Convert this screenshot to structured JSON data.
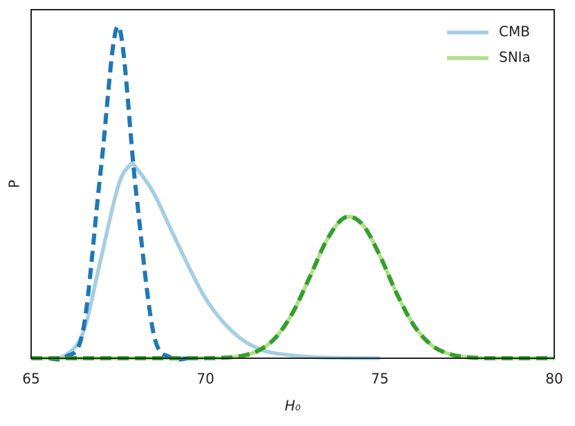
{
  "chart_data": {
    "type": "line",
    "xlabel": "H₀",
    "ylabel": "P",
    "xlim": [
      65,
      80
    ],
    "xticks": [
      65,
      70,
      75,
      80
    ],
    "ylim": [
      0,
      1.05
    ],
    "grid": false,
    "legend": "upper right",
    "series": [
      {
        "name": "CMB",
        "color": "#a6cee3",
        "dash": false,
        "x": [
          65.5,
          66,
          66.5,
          67,
          67.5,
          67.85,
          68,
          68.5,
          69,
          69.5,
          70,
          70.5,
          71,
          71.5,
          72,
          73,
          74,
          75
        ],
        "values": [
          0,
          0.01,
          0.08,
          0.3,
          0.52,
          0.583,
          0.575,
          0.5,
          0.39,
          0.28,
          0.18,
          0.11,
          0.06,
          0.03,
          0.015,
          0.004,
          0.001,
          0
        ]
      },
      {
        "name": "SNIa",
        "color": "#b2df8a",
        "dash": false,
        "x": [
          65,
          66,
          67,
          68,
          69,
          70,
          70.5,
          71,
          71.5,
          72,
          72.5,
          73,
          73.5,
          74,
          74.5,
          75,
          75.5,
          76,
          76.5,
          77,
          77.5,
          78,
          78.5,
          79,
          80
        ],
        "values": [
          0,
          0,
          0,
          0,
          0,
          0.0003,
          0.0015,
          0.0064,
          0.022,
          0.061,
          0.137,
          0.247,
          0.36,
          0.424,
          0.403,
          0.309,
          0.191,
          0.095,
          0.038,
          0.0125,
          0.0033,
          0.0003,
          0,
          0,
          0
        ]
      },
      {
        "color": "#1f78b4",
        "dash": true,
        "x": [
          65.5,
          66,
          66.5,
          67,
          67.5,
          68,
          68.5,
          69,
          69.5
        ],
        "values": [
          0,
          0.004,
          0.09,
          0.57,
          1.0,
          0.51,
          0.08,
          0.002,
          0
        ]
      },
      {
        "color": "#33a02c",
        "dash": true,
        "x": [
          65,
          66,
          67,
          68,
          69,
          70,
          70.5,
          71,
          71.5,
          72,
          72.5,
          73,
          73.5,
          74,
          74.5,
          75,
          75.5,
          76,
          76.5,
          77,
          77.5,
          78,
          78.5,
          79,
          80
        ],
        "values": [
          0,
          0,
          0,
          0,
          0,
          0.0003,
          0.0015,
          0.0064,
          0.022,
          0.061,
          0.137,
          0.247,
          0.36,
          0.424,
          0.403,
          0.309,
          0.191,
          0.095,
          0.038,
          0.0125,
          0.0033,
          0.0003,
          0,
          0,
          0
        ]
      }
    ]
  }
}
